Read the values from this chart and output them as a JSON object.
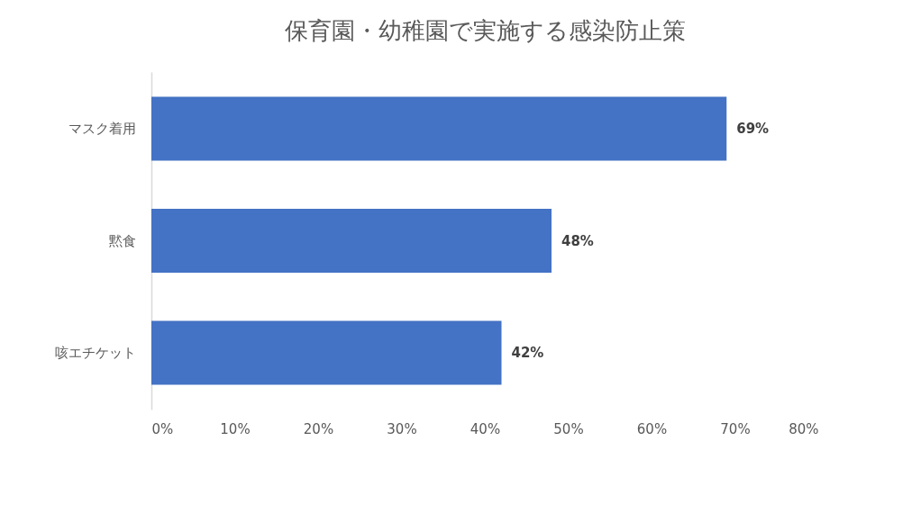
{
  "chart_data": {
    "type": "bar",
    "orientation": "horizontal",
    "title": "保育園・幼稚園で実施する感染防止策",
    "categories": [
      "マスク着用",
      "黙食",
      "咳エチケット"
    ],
    "values": [
      69,
      48,
      42
    ],
    "color": "#4472c4",
    "value_labels": [
      "69%",
      "48%",
      "42%"
    ],
    "xlim": [
      0,
      80
    ],
    "xticks": [
      {
        "value": 0,
        "label": "0%"
      },
      {
        "value": 10,
        "label": "10%"
      },
      {
        "value": 20,
        "label": "20%"
      },
      {
        "value": 30,
        "label": "30%"
      },
      {
        "value": 40,
        "label": "40%"
      },
      {
        "value": 50,
        "label": "50%"
      },
      {
        "value": 60,
        "label": "60%"
      },
      {
        "value": 70,
        "label": "70%"
      },
      {
        "value": 80,
        "label": "80%"
      }
    ]
  }
}
